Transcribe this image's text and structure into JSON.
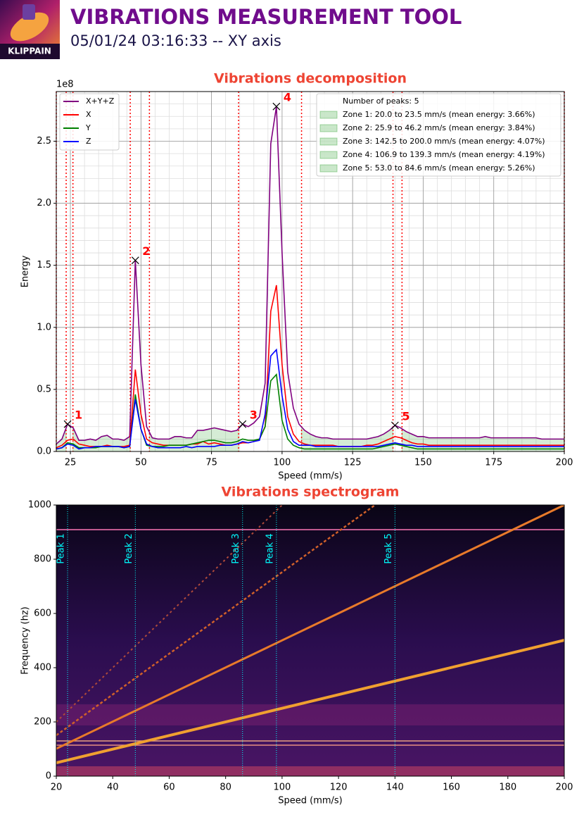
{
  "header": {
    "title": "VIBRATIONS MEASUREMENT TOOL",
    "subtitle": "05/01/24 03:16:33 -- XY axis",
    "logo_text": "KLIPPAIN"
  },
  "chart_data": [
    {
      "type": "line",
      "title": "Vibrations decomposition",
      "x_label": "Speed (mm/s)",
      "y_label": "Energy",
      "y_offset_label": "1e8",
      "xlim": [
        20,
        200
      ],
      "ylim": [
        0,
        2.9
      ],
      "xticks": [
        25,
        50,
        75,
        100,
        125,
        150,
        175,
        200
      ],
      "yticks": [
        {
          "value": 0,
          "label": "0.0"
        },
        0.5,
        {
          "value": 1,
          "label": "1.0"
        },
        1.5,
        {
          "value": 2,
          "label": "2.0"
        },
        2.5
      ],
      "grid": true,
      "xminor": 5,
      "yminor": 0.1,
      "x": [
        20,
        22,
        24,
        26,
        28,
        30,
        32,
        34,
        36,
        38,
        40,
        42,
        44,
        46,
        48,
        50,
        52,
        54,
        56,
        58,
        60,
        62,
        64,
        66,
        68,
        70,
        72,
        74,
        76,
        78,
        80,
        82,
        84,
        86,
        88,
        90,
        92,
        94,
        96,
        98,
        100,
        102,
        104,
        106,
        108,
        110,
        112,
        114,
        116,
        118,
        120,
        122,
        124,
        126,
        128,
        130,
        132,
        134,
        136,
        138,
        140,
        142,
        144,
        146,
        148,
        150,
        152,
        154,
        156,
        158,
        160,
        162,
        164,
        166,
        168,
        170,
        172,
        174,
        176,
        178,
        180,
        182,
        184,
        186,
        188,
        190,
        192,
        194,
        196,
        198,
        200
      ],
      "series": [
        {
          "name": "X+Y+Z",
          "color": "purple",
          "values": [
            0.06,
            0.1,
            0.22,
            0.19,
            0.09,
            0.09,
            0.1,
            0.09,
            0.12,
            0.13,
            0.1,
            0.1,
            0.09,
            0.12,
            1.54,
            0.7,
            0.2,
            0.11,
            0.1,
            0.1,
            0.1,
            0.12,
            0.12,
            0.11,
            0.11,
            0.17,
            0.17,
            0.18,
            0.19,
            0.18,
            0.17,
            0.16,
            0.17,
            0.22,
            0.2,
            0.23,
            0.28,
            0.55,
            2.48,
            2.78,
            1.6,
            0.64,
            0.35,
            0.22,
            0.17,
            0.14,
            0.12,
            0.11,
            0.11,
            0.1,
            0.1,
            0.1,
            0.1,
            0.1,
            0.1,
            0.1,
            0.11,
            0.12,
            0.14,
            0.17,
            0.21,
            0.19,
            0.16,
            0.14,
            0.12,
            0.12,
            0.11,
            0.11,
            0.11,
            0.11,
            0.11,
            0.11,
            0.11,
            0.11,
            0.11,
            0.11,
            0.12,
            0.11,
            0.11,
            0.11,
            0.11,
            0.11,
            0.11,
            0.11,
            0.11,
            0.11,
            0.1,
            0.1,
            0.1,
            0.1,
            0.1
          ]
        },
        {
          "name": "X",
          "color": "red",
          "values": [
            0.03,
            0.05,
            0.09,
            0.1,
            0.06,
            0.05,
            0.04,
            0.04,
            0.04,
            0.05,
            0.04,
            0.04,
            0.04,
            0.05,
            0.66,
            0.3,
            0.1,
            0.07,
            0.06,
            0.05,
            0.05,
            0.05,
            0.05,
            0.05,
            0.06,
            0.06,
            0.08,
            0.06,
            0.07,
            0.06,
            0.05,
            0.05,
            0.06,
            0.07,
            0.07,
            0.08,
            0.1,
            0.2,
            1.13,
            1.34,
            0.7,
            0.28,
            0.14,
            0.08,
            0.06,
            0.05,
            0.05,
            0.05,
            0.05,
            0.05,
            0.04,
            0.04,
            0.04,
            0.04,
            0.04,
            0.05,
            0.05,
            0.06,
            0.08,
            0.1,
            0.12,
            0.11,
            0.09,
            0.07,
            0.06,
            0.06,
            0.05,
            0.05,
            0.05,
            0.05,
            0.05,
            0.05,
            0.05,
            0.05,
            0.05,
            0.05,
            0.05,
            0.05,
            0.05,
            0.05,
            0.05,
            0.05,
            0.05,
            0.05,
            0.05,
            0.05,
            0.05,
            0.05,
            0.05,
            0.05,
            0.05
          ]
        },
        {
          "name": "Y",
          "color": "green",
          "values": [
            0.02,
            0.03,
            0.07,
            0.06,
            0.03,
            0.03,
            0.03,
            0.03,
            0.04,
            0.04,
            0.04,
            0.04,
            0.03,
            0.04,
            0.46,
            0.18,
            0.05,
            0.04,
            0.04,
            0.04,
            0.05,
            0.05,
            0.05,
            0.05,
            0.06,
            0.07,
            0.08,
            0.09,
            0.09,
            0.08,
            0.07,
            0.07,
            0.08,
            0.1,
            0.09,
            0.09,
            0.1,
            0.2,
            0.57,
            0.62,
            0.25,
            0.1,
            0.05,
            0.03,
            0.02,
            0.02,
            0.02,
            0.02,
            0.02,
            0.02,
            0.02,
            0.02,
            0.02,
            0.02,
            0.02,
            0.02,
            0.02,
            0.03,
            0.04,
            0.05,
            0.06,
            0.05,
            0.04,
            0.03,
            0.02,
            0.02,
            0.02,
            0.02,
            0.02,
            0.02,
            0.02,
            0.02,
            0.02,
            0.02,
            0.02,
            0.02,
            0.02,
            0.02,
            0.02,
            0.02,
            0.02,
            0.02,
            0.02,
            0.02,
            0.02,
            0.02,
            0.02,
            0.02,
            0.02,
            0.02,
            0.02
          ]
        },
        {
          "name": "Z",
          "color": "blue",
          "values": [
            0.02,
            0.03,
            0.06,
            0.05,
            0.02,
            0.03,
            0.03,
            0.04,
            0.04,
            0.04,
            0.04,
            0.04,
            0.03,
            0.04,
            0.42,
            0.18,
            0.06,
            0.04,
            0.03,
            0.03,
            0.03,
            0.03,
            0.03,
            0.04,
            0.03,
            0.04,
            0.04,
            0.04,
            0.04,
            0.05,
            0.05,
            0.05,
            0.06,
            0.08,
            0.07,
            0.08,
            0.09,
            0.3,
            0.77,
            0.82,
            0.45,
            0.18,
            0.08,
            0.05,
            0.05,
            0.05,
            0.04,
            0.04,
            0.04,
            0.04,
            0.04,
            0.04,
            0.04,
            0.04,
            0.04,
            0.04,
            0.04,
            0.04,
            0.05,
            0.06,
            0.07,
            0.06,
            0.05,
            0.05,
            0.04,
            0.04,
            0.04,
            0.04,
            0.04,
            0.04,
            0.04,
            0.04,
            0.04,
            0.04,
            0.04,
            0.04,
            0.04,
            0.04,
            0.04,
            0.04,
            0.04,
            0.04,
            0.04,
            0.04,
            0.04,
            0.04,
            0.04,
            0.04,
            0.04,
            0.04,
            0.04
          ]
        }
      ],
      "peaks": [
        {
          "x": 24,
          "y": 0.22,
          "label": "1"
        },
        {
          "x": 48,
          "y": 1.54,
          "label": "2"
        },
        {
          "x": 86,
          "y": 0.22,
          "label": "3"
        },
        {
          "x": 98,
          "y": 2.78,
          "label": "4"
        },
        {
          "x": 140,
          "y": 0.21,
          "label": "5"
        }
      ],
      "peaks_legend_title": "Number of peaks: 5",
      "zone_color": "#2ca02c",
      "zone_line_color": "red",
      "zones": [
        {
          "start": 20.0,
          "end": 23.5,
          "label": "Zone 1: 20.0 to 23.5 mm/s (mean energy: 3.66%)"
        },
        {
          "start": 25.9,
          "end": 46.2,
          "label": "Zone 2: 25.9 to 46.2 mm/s (mean energy: 3.84%)"
        },
        {
          "start": 142.5,
          "end": 200.0,
          "label": "Zone 3: 142.5 to 200.0 mm/s (mean energy: 4.07%)"
        },
        {
          "start": 106.9,
          "end": 139.3,
          "label": "Zone 4: 106.9 to 139.3 mm/s (mean energy: 4.19%)"
        },
        {
          "start": 53.0,
          "end": 84.6,
          "label": "Zone 5: 53.0 to 84.6 mm/s (mean energy: 5.26%)"
        }
      ]
    },
    {
      "type": "heatmap",
      "title": "Vibrations spectrogram",
      "x_label": "Speed (mm/s)",
      "y_label": "Frequency (hz)",
      "xlim": [
        20,
        200
      ],
      "ylim": [
        0,
        1000
      ],
      "xticks": [
        20,
        40,
        60,
        80,
        100,
        120,
        140,
        160,
        180,
        200
      ],
      "yticks": [
        0,
        200,
        400,
        600,
        800,
        1000
      ],
      "peak_color": "cyan",
      "peaks": [
        {
          "x": 24,
          "label": "Peak 1"
        },
        {
          "x": 48,
          "label": "Peak 2"
        },
        {
          "x": 86,
          "label": "Peak 3"
        },
        {
          "x": 98,
          "label": "Peak 4"
        },
        {
          "x": 140,
          "label": "Peak 5"
        }
      ]
    }
  ]
}
